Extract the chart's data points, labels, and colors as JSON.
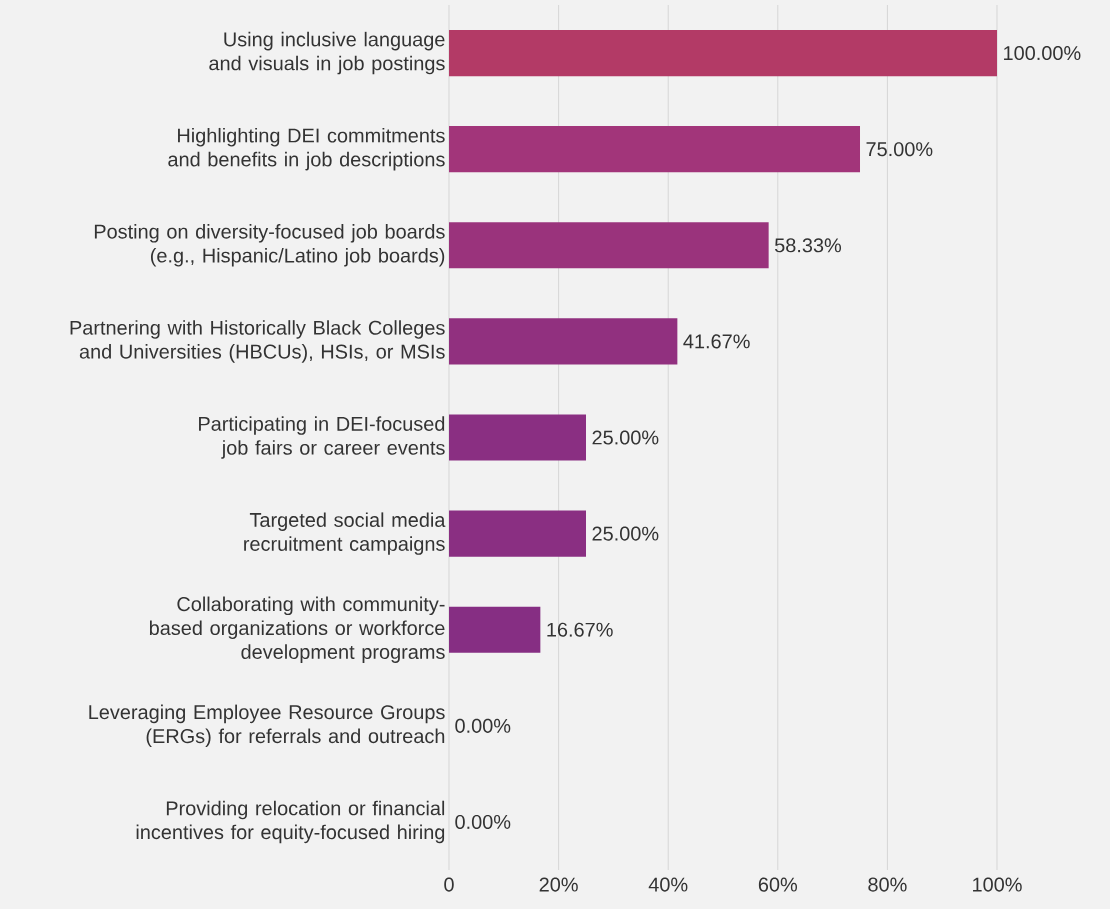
{
  "chart_data": {
    "type": "bar",
    "orientation": "horizontal",
    "categories": [
      "Using inclusive language and visuals in job postings",
      "Highlighting DEI commitments and benefits in job descriptions",
      "Posting on diversity-focused job boards (e.g., Hispanic/Latino job boards)",
      "Partnering with Historically Black Colleges and Universities (HBCUs), HSIs, or MSIs",
      "Participating in DEI-focused job fairs or career events",
      "Targeted social media recruitment campaigns",
      "Collaborating with community-based organizations or workforce development programs",
      "Leveraging Employee Resource Groups (ERGs) for referrals and outreach",
      "Providing relocation or financial incentives for equity-focused hiring"
    ],
    "values": [
      100,
      75,
      58.33,
      41.67,
      25,
      25,
      16.67,
      0,
      0
    ],
    "value_labels": [
      "100.00%",
      "75.00%",
      "58.33%",
      "41.67%",
      "25.00%",
      "25.00%",
      "16.67%",
      "0.00%",
      "0.00%"
    ],
    "colors": [
      "#b33a66",
      "#a2357a",
      "#9a337c",
      "#91307f",
      "#8a2f82",
      "#8a2f82",
      "#862e83",
      "#7f2d87",
      "#7f2d87"
    ],
    "xlim": [
      0,
      100
    ],
    "xticks": [
      0,
      {
        "value": 20,
        "label": "20%"
      },
      {
        "value": 40,
        "label": "40%"
      },
      {
        "value": 60,
        "label": "60%"
      },
      {
        "value": 80,
        "label": "80%"
      },
      {
        "value": 100,
        "label": "100%"
      }
    ],
    "grid": "x"
  }
}
